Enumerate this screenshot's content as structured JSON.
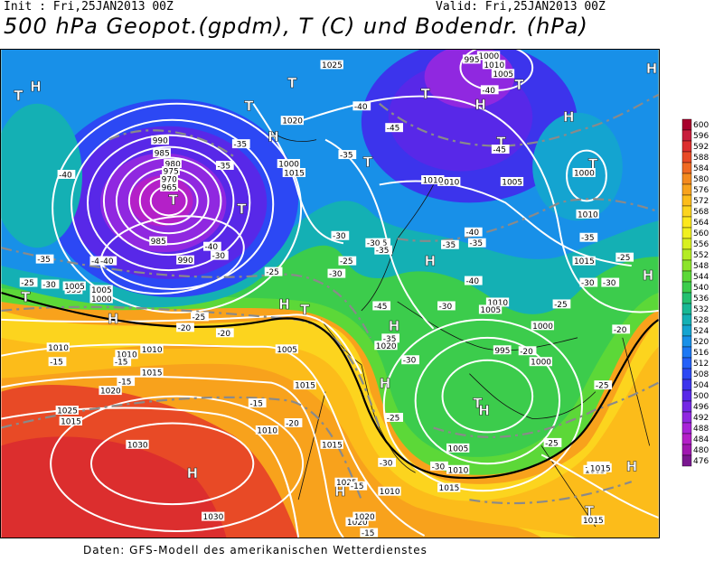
{
  "header": {
    "init": "Init : Fri,25JAN2013 00Z",
    "valid": "Valid: Fri,25JAN2013 00Z",
    "title": "500 hPa Geopot.(gpdm), T (C) und Bodendr. (hPa)"
  },
  "credit": "Daten: GFS-Modell des amerikanischen Wetterdienstes",
  "legend": {
    "levels": [
      "600",
      "596",
      "592",
      "588",
      "584",
      "580",
      "576",
      "572",
      "568",
      "564",
      "560",
      "556",
      "552",
      "548",
      "544",
      "540",
      "536",
      "532",
      "528",
      "524",
      "520",
      "516",
      "512",
      "508",
      "504",
      "500",
      "496",
      "492",
      "488",
      "484",
      "480",
      "476"
    ],
    "colors": [
      "#a8002c",
      "#c81e3c",
      "#dc2e2e",
      "#e84a26",
      "#f06a22",
      "#f48a1e",
      "#f8a21c",
      "#fcbc1a",
      "#fcd41e",
      "#fce81e",
      "#f0f020",
      "#d8f020",
      "#b4ec24",
      "#8ce42c",
      "#5cd838",
      "#3ccc4c",
      "#24c070",
      "#18b894",
      "#14b0b4",
      "#14a4d0",
      "#1890e8",
      "#1c78f4",
      "#2460f8",
      "#2c48f4",
      "#3c34ec",
      "#5828e8",
      "#7428e4",
      "#9028e0",
      "#a824d8",
      "#b420c8",
      "#a018b0",
      "#7a1890"
    ]
  },
  "map": {
    "high_labels": [
      {
        "id": "h1",
        "text": "H"
      },
      {
        "id": "h2",
        "text": "H"
      },
      {
        "id": "h3",
        "text": "H"
      },
      {
        "id": "h4",
        "text": "H"
      },
      {
        "id": "h5",
        "text": "H"
      },
      {
        "id": "h6",
        "text": "H"
      },
      {
        "id": "h7",
        "text": "H"
      },
      {
        "id": "h8",
        "text": "H"
      },
      {
        "id": "h9",
        "text": "H"
      },
      {
        "id": "h10",
        "text": "H"
      },
      {
        "id": "h11",
        "text": "H"
      },
      {
        "id": "h12",
        "text": "H"
      },
      {
        "id": "h13",
        "text": "H"
      },
      {
        "id": "h14",
        "text": "H"
      },
      {
        "id": "h15",
        "text": "H"
      }
    ],
    "low_labels": [
      {
        "id": "t1",
        "text": "T"
      },
      {
        "id": "t2",
        "text": "T"
      },
      {
        "id": "t3",
        "text": "T"
      },
      {
        "id": "t4",
        "text": "T"
      },
      {
        "id": "t5",
        "text": "T"
      },
      {
        "id": "t6",
        "text": "T"
      },
      {
        "id": "t7",
        "text": "T"
      },
      {
        "id": "t8",
        "text": "T"
      },
      {
        "id": "t9",
        "text": "T"
      },
      {
        "id": "t10",
        "text": "T"
      },
      {
        "id": "t11",
        "text": "T"
      },
      {
        "id": "t12",
        "text": "T"
      },
      {
        "id": "t13",
        "text": "T"
      },
      {
        "id": "t14",
        "text": "T"
      }
    ],
    "isobar_labels": [
      "1030",
      "1025",
      "1020",
      "1015",
      "1010",
      "1005",
      "1000",
      "995",
      "990",
      "985",
      "980",
      "975",
      "970",
      "965",
      "1030",
      "1025",
      "1020",
      "1015",
      "1010",
      "1005",
      "1010",
      "1015",
      "1020",
      "1015",
      "1010",
      "1000",
      "1005",
      "1000",
      "995",
      "1010",
      "1005",
      "1015",
      "1010",
      "1020",
      "1025",
      "1015",
      "1000",
      "1005",
      "1010",
      "1010",
      "1015",
      "1005",
      "1010",
      "1000",
      "1015",
      "1020",
      "1015",
      "1005",
      "1010",
      "1000",
      "995",
      "985",
      "990",
      "1005",
      "1010",
      "1015"
    ],
    "temp_labels": [
      "-15",
      "-15",
      "-15",
      "-20",
      "-25",
      "-30",
      "-35",
      "-40",
      "-40",
      "-40",
      "-35",
      "-30",
      "-25",
      "-20",
      "-15",
      "-20",
      "-25",
      "-30",
      "-35",
      "-40",
      "-45",
      "-45",
      "-40",
      "-35",
      "-30",
      "-25",
      "-30",
      "-35",
      "-40",
      "-35",
      "-30",
      "-25",
      "-20",
      "-15",
      "-25",
      "-30",
      "-20",
      "-25",
      "-30",
      "-35",
      "-40",
      "-30",
      "-35",
      "-25",
      "-30",
      "-20",
      "-15",
      "-25",
      "-30",
      "-35",
      "-40",
      "-45",
      "-35"
    ]
  }
}
